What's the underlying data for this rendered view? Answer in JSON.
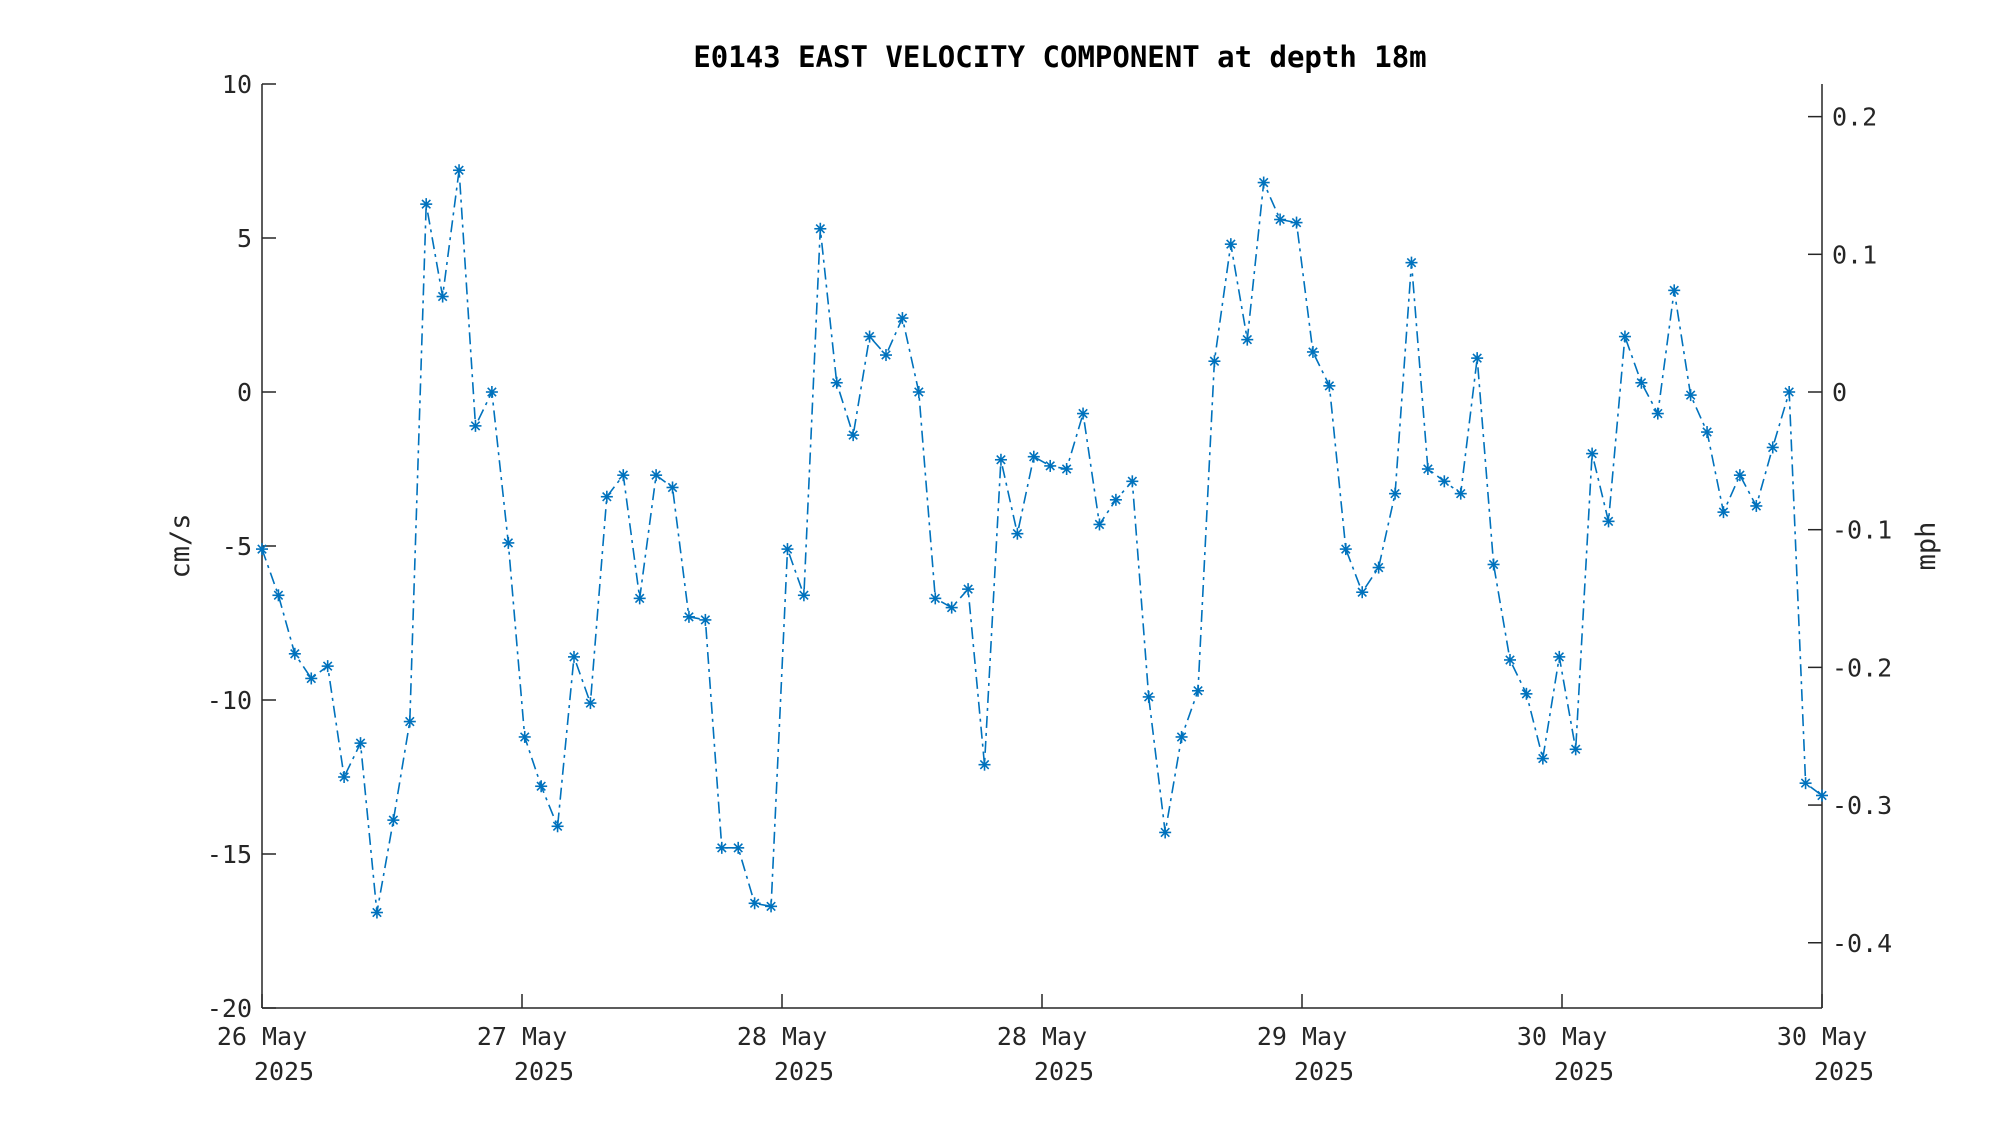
{
  "chart_data": {
    "type": "line",
    "title": "E0143 EAST VELOCITY COMPONENT at depth 18m",
    "ylabel": "cm/s",
    "ylabel_right": "mph",
    "ylim": [
      -20,
      10
    ],
    "y_ticks": [
      10,
      5,
      0,
      -5,
      -10,
      -15,
      -20
    ],
    "y_ticks_right": [
      0.2,
      0.1,
      0,
      -0.1,
      -0.2,
      -0.3,
      -0.4
    ],
    "x_tick_labels": [
      [
        "26 May",
        "2025"
      ],
      [
        "27 May",
        "2025"
      ],
      [
        "28 May",
        "2025"
      ],
      [
        "28 May",
        "2025"
      ],
      [
        "29 May",
        "2025"
      ],
      [
        "30 May",
        "2025"
      ],
      [
        "30 May",
        "2025"
      ]
    ],
    "grid": false,
    "line_style": "dash-dot",
    "marker": "asterisk",
    "colors": {
      "series": "#0072BD",
      "axis": "#262626"
    },
    "series": [
      {
        "values": [
          -5.1,
          -6.6,
          -8.5,
          -9.3,
          -8.9,
          -12.5,
          -11.4,
          -16.9,
          -13.9,
          -10.7,
          6.1,
          3.1,
          7.2,
          -1.1,
          0.0,
          -4.9,
          -11.2,
          -12.8,
          -14.1,
          -8.6,
          -10.1,
          -3.4,
          -2.7,
          -6.7,
          -2.7,
          -3.1,
          -7.3,
          -7.4,
          -14.8,
          -14.8,
          -16.6,
          -16.7,
          -5.1,
          -6.6,
          5.3,
          0.3,
          -1.4,
          1.8,
          1.2,
          2.4,
          0.0,
          -6.7,
          -7.0,
          -6.4,
          -12.1,
          -2.2,
          -4.6,
          -2.1,
          -2.4,
          -2.5,
          -0.7,
          -4.3,
          -3.5,
          -2.9,
          -9.9,
          -14.3,
          -11.2,
          -9.7,
          1.0,
          4.8,
          1.7,
          6.8,
          5.6,
          5.5,
          1.3,
          0.2,
          -5.1,
          -6.5,
          -5.7,
          -3.3,
          4.2,
          -2.5,
          -2.9,
          -3.3,
          1.1,
          -5.6,
          -8.7,
          -9.8,
          -11.9,
          -8.6,
          -11.6,
          -2.0,
          -4.2,
          1.8,
          0.3,
          -0.7,
          3.3,
          -0.1,
          -1.3,
          -3.9,
          -2.7,
          -3.7,
          -1.8,
          0.0,
          -12.7,
          -13.1
        ]
      }
    ]
  }
}
